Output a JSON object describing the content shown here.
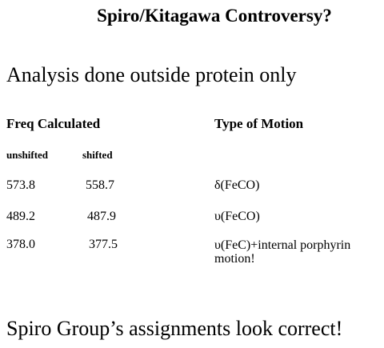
{
  "title": "Spiro/Kitagawa Controversy?",
  "subtitle": "Analysis done outside protein only",
  "table": {
    "headers": [
      "Freq Calculated",
      "Type of Motion"
    ],
    "subheaders": [
      "unshifted",
      "shifted"
    ],
    "rows": [
      [
        "573.8",
        "558.7",
        "δ(FeCO)"
      ],
      [
        "489.2",
        "487.9",
        "υ(FeCO)"
      ],
      [
        "378.0",
        "377.5",
        "υ(FeC)+internal porphyrin motion!"
      ]
    ]
  },
  "conclusion": "Spiro Group’s assignments look correct!"
}
